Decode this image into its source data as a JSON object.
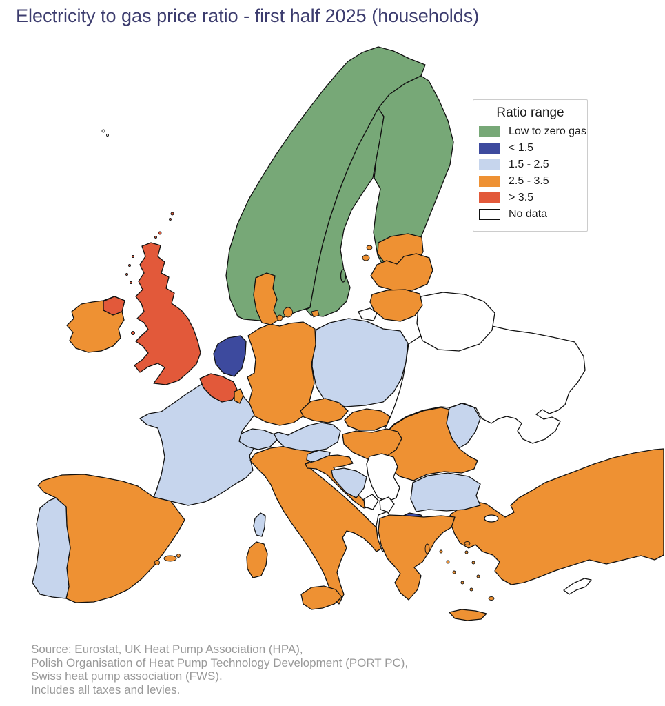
{
  "title": "Electricity to gas price ratio - first half 2025 (households)",
  "colors": {
    "low_to_zero_gas": "#77a877",
    "lt_1_5": "#3d4a9e",
    "r1_5_to_2_5": "#c6d5ed",
    "r2_5_to_3_5": "#ee9133",
    "gt_3_5": "#e2593a",
    "no_data": "#ffffff",
    "outline": "#111111",
    "title_text": "#3c3c6e",
    "source_text": "#999999",
    "legend_border": "#cccccc"
  },
  "legend": {
    "title": "Ratio range",
    "items": [
      {
        "label": "Low to zero gas",
        "category": "low_to_zero_gas"
      },
      {
        "label": "< 1.5",
        "category": "lt_1_5"
      },
      {
        "label": "1.5 - 2.5",
        "category": "r1_5_to_2_5"
      },
      {
        "label": "2.5 - 3.5",
        "category": "r2_5_to_3_5"
      },
      {
        "label": "> 3.5",
        "category": "gt_3_5"
      },
      {
        "label": "No data",
        "category": "no_data"
      }
    ]
  },
  "source": {
    "lines": [
      "Source: Eurostat, UK Heat Pump Association (HPA),",
      "Polish Organisation of Heat Pump Technology Development (PORT PC),",
      "Swiss heat pump association (FWS).",
      "Includes all taxes and levies."
    ]
  },
  "map": {
    "countries": [
      {
        "id": "norway",
        "name": "Norway",
        "category": "low_to_zero_gas"
      },
      {
        "id": "sweden",
        "name": "Sweden",
        "category": "low_to_zero_gas"
      },
      {
        "id": "finland",
        "name": "Finland",
        "category": "low_to_zero_gas"
      },
      {
        "id": "estonia",
        "name": "Estonia",
        "category": "r2_5_to_3_5"
      },
      {
        "id": "latvia",
        "name": "Latvia",
        "category": "r2_5_to_3_5"
      },
      {
        "id": "lithuania",
        "name": "Lithuania",
        "category": "r2_5_to_3_5"
      },
      {
        "id": "kaliningrad",
        "name": "Russia (Kaliningrad)",
        "category": "no_data"
      },
      {
        "id": "belarus",
        "name": "Belarus",
        "category": "no_data"
      },
      {
        "id": "ukraine",
        "name": "Ukraine",
        "category": "no_data"
      },
      {
        "id": "moldova",
        "name": "Moldova",
        "category": "r1_5_to_2_5"
      },
      {
        "id": "poland",
        "name": "Poland",
        "category": "r1_5_to_2_5"
      },
      {
        "id": "germany",
        "name": "Germany",
        "category": "r2_5_to_3_5"
      },
      {
        "id": "denmark",
        "name": "Denmark",
        "category": "r2_5_to_3_5"
      },
      {
        "id": "netherlands",
        "name": "Netherlands",
        "category": "lt_1_5"
      },
      {
        "id": "belgium",
        "name": "Belgium",
        "category": "gt_3_5"
      },
      {
        "id": "luxembourg",
        "name": "Luxembourg",
        "category": "r2_5_to_3_5"
      },
      {
        "id": "france",
        "name": "France",
        "category": "r1_5_to_2_5"
      },
      {
        "id": "united_kingdom",
        "name": "United Kingdom",
        "category": "gt_3_5"
      },
      {
        "id": "ireland",
        "name": "Ireland",
        "category": "r2_5_to_3_5"
      },
      {
        "id": "spain",
        "name": "Spain",
        "category": "r2_5_to_3_5"
      },
      {
        "id": "portugal",
        "name": "Portugal",
        "category": "r1_5_to_2_5"
      },
      {
        "id": "italy",
        "name": "Italy",
        "category": "r2_5_to_3_5"
      },
      {
        "id": "switzerland",
        "name": "Switzerland",
        "category": "r1_5_to_2_5"
      },
      {
        "id": "austria",
        "name": "Austria",
        "category": "r1_5_to_2_5"
      },
      {
        "id": "czechia",
        "name": "Czechia",
        "category": "r2_5_to_3_5"
      },
      {
        "id": "slovakia",
        "name": "Slovakia",
        "category": "r2_5_to_3_5"
      },
      {
        "id": "hungary",
        "name": "Hungary",
        "category": "r2_5_to_3_5"
      },
      {
        "id": "slovenia",
        "name": "Slovenia",
        "category": "r1_5_to_2_5"
      },
      {
        "id": "croatia",
        "name": "Croatia",
        "category": "r2_5_to_3_5"
      },
      {
        "id": "bosnia",
        "name": "Bosnia and Herzegovina",
        "category": "r1_5_to_2_5"
      },
      {
        "id": "serbia",
        "name": "Serbia",
        "category": "no_data"
      },
      {
        "id": "montenegro",
        "name": "Montenegro",
        "category": "no_data"
      },
      {
        "id": "kosovo",
        "name": "Kosovo",
        "category": "no_data"
      },
      {
        "id": "albania",
        "name": "Albania",
        "category": "no_data"
      },
      {
        "id": "north_macedonia",
        "name": "North Macedonia",
        "category": "lt_1_5"
      },
      {
        "id": "bulgaria",
        "name": "Bulgaria",
        "category": "r1_5_to_2_5"
      },
      {
        "id": "romania",
        "name": "Romania",
        "category": "r2_5_to_3_5"
      },
      {
        "id": "greece",
        "name": "Greece",
        "category": "r2_5_to_3_5"
      },
      {
        "id": "turkey",
        "name": "Turkey",
        "category": "r2_5_to_3_5"
      },
      {
        "id": "cyprus",
        "name": "Cyprus",
        "category": "no_data"
      },
      {
        "id": "faroe_islands",
        "name": "Faroe Islands",
        "category": "no_data"
      },
      {
        "id": "marmara_sea",
        "name": "Sea of Marmara",
        "category": "no_data"
      }
    ]
  }
}
